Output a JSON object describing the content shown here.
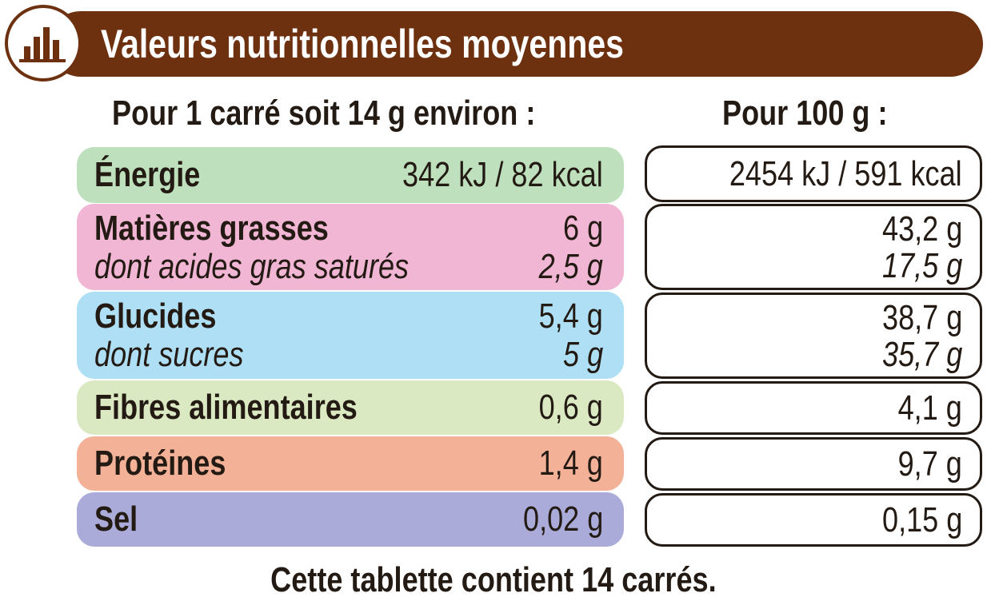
{
  "header": {
    "title": "Valeurs nutritionnelles moyennes",
    "icon": "bar-chart-icon",
    "color": "#6d3110"
  },
  "columns": {
    "serving": "Pour 1 carré soit 14 g environ :",
    "per100g": "Pour 100 g :"
  },
  "rows": {
    "energy": {
      "label": "Énergie",
      "serving": "342 kJ / 82 kcal",
      "per100g": "2454 kJ / 591 kcal",
      "color": "#bfe0bd"
    },
    "fat": {
      "label": "Matières grasses",
      "serving": "6 g",
      "per100g": "43,2 g",
      "color": "#f1b6d4"
    },
    "saturated": {
      "label": "dont acides gras saturés",
      "serving": "2,5 g",
      "per100g": "17,5 g"
    },
    "carbs": {
      "label": "Glucides",
      "serving": "5,4 g",
      "per100g": "38,7 g",
      "color": "#aedff4"
    },
    "sugars": {
      "label": "dont sucres",
      "serving": "5 g",
      "per100g": "35,7 g"
    },
    "fiber": {
      "label": "Fibres alimentaires",
      "serving": "0,6 g",
      "per100g": "4,1 g",
      "color": "#dae9c2"
    },
    "protein": {
      "label": "Protéines",
      "serving": "1,4 g",
      "per100g": "9,7 g",
      "color": "#f3b298"
    },
    "salt": {
      "label": "Sel",
      "serving": "0,02 g",
      "per100g": "0,15 g",
      "color": "#aaabd8"
    }
  },
  "footer": "Cette tablette contient 14 carrés."
}
